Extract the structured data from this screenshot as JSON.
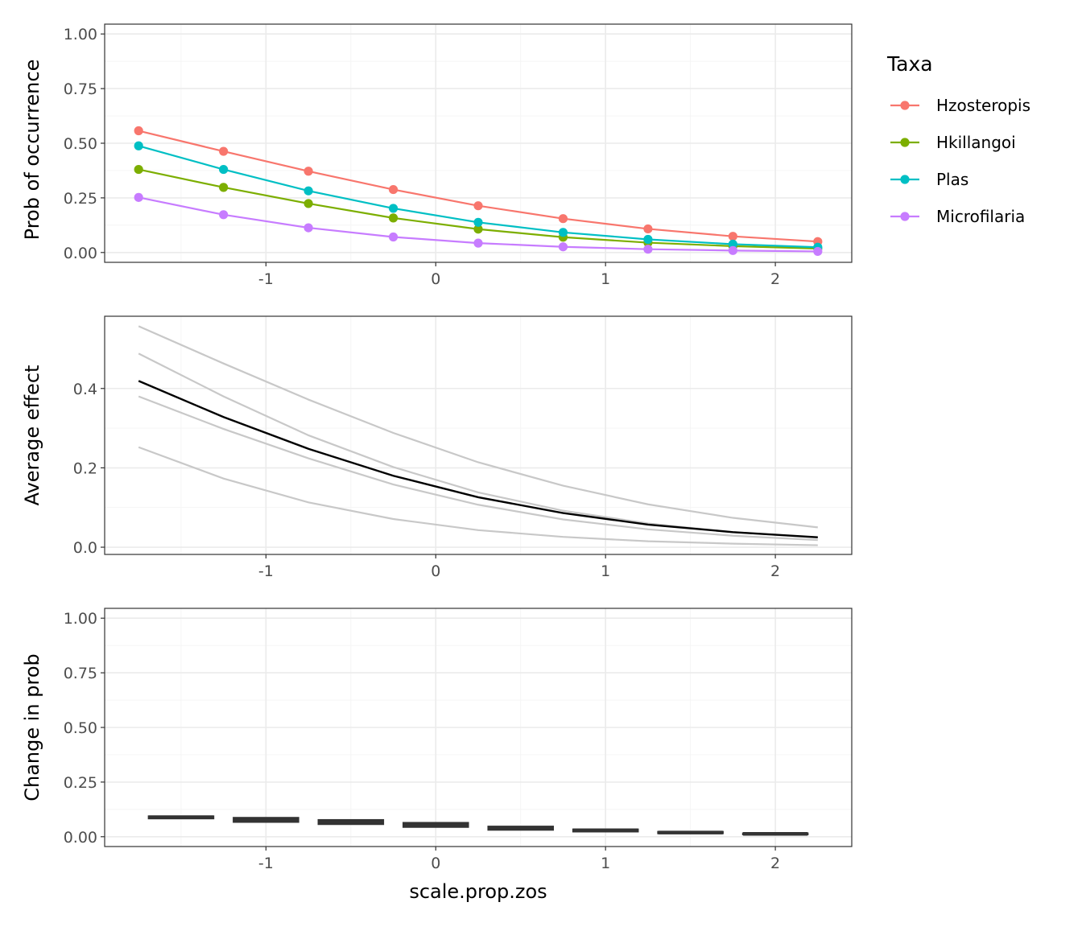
{
  "x_title": "scale.prop.zos",
  "legend": {
    "title": "Taxa",
    "items": [
      {
        "label": "Hzosteropis",
        "color": "#F8766D"
      },
      {
        "label": "Hkillangoi",
        "color": "#7CAE00"
      },
      {
        "label": "Plas",
        "color": "#00BFC4"
      },
      {
        "label": "Microfilaria",
        "color": "#C77CFF"
      }
    ]
  },
  "colors": {
    "average_line": "#000000",
    "taxa_gray_lines": "#c8c8c8",
    "crossbar": "#333333"
  },
  "chart_data": [
    {
      "type": "line",
      "ylabel": "Prob of occurrence",
      "xlabel": "",
      "xlim": [
        -1.95,
        2.45
      ],
      "ylim": [
        -0.045,
        1.045
      ],
      "x_ticks": [
        "-1",
        "0",
        "1",
        "2"
      ],
      "x_tick_values": [
        -1,
        0,
        1,
        2
      ],
      "y_ticks": [
        "0.00",
        "0.25",
        "0.50",
        "0.75",
        "1.00"
      ],
      "y_tick_values": [
        0,
        0.25,
        0.5,
        0.75,
        1
      ],
      "grid": true,
      "legend_position": "right",
      "x": [
        -1.75,
        -1.25,
        -0.75,
        -0.25,
        0.25,
        0.75,
        1.25,
        1.75,
        2.25
      ],
      "series": [
        {
          "name": "Hzosteropis",
          "values": [
            0.557,
            0.463,
            0.372,
            0.288,
            0.214,
            0.155,
            0.108,
            0.074,
            0.05
          ]
        },
        {
          "name": "Hkillangoi",
          "values": [
            0.38,
            0.298,
            0.224,
            0.158,
            0.107,
            0.07,
            0.045,
            0.029,
            0.018
          ]
        },
        {
          "name": "Plas",
          "values": [
            0.488,
            0.38,
            0.282,
            0.202,
            0.138,
            0.092,
            0.06,
            0.038,
            0.024
          ]
        },
        {
          "name": "Microfilaria",
          "values": [
            0.252,
            0.173,
            0.113,
            0.071,
            0.043,
            0.026,
            0.015,
            0.009,
            0.005
          ]
        }
      ]
    },
    {
      "type": "line",
      "ylabel": "Average effect",
      "xlabel": "",
      "xlim": [
        -1.95,
        2.45
      ],
      "ylim": [
        -0.0182,
        0.582
      ],
      "x_ticks": [
        "-1",
        "0",
        "1",
        "2"
      ],
      "x_tick_values": [
        -1,
        0,
        1,
        2
      ],
      "y_ticks": [
        "0.0",
        "0.2",
        "0.4"
      ],
      "y_tick_values": [
        0,
        0.2,
        0.4
      ],
      "grid": true,
      "x": [
        -1.75,
        -1.25,
        -0.75,
        -0.25,
        0.25,
        0.75,
        1.25,
        1.75,
        2.25
      ],
      "average": [
        0.419,
        0.328,
        0.248,
        0.18,
        0.126,
        0.086,
        0.057,
        0.038,
        0.025
      ],
      "taxa_series": [
        [
          0.557,
          0.463,
          0.372,
          0.288,
          0.214,
          0.155,
          0.108,
          0.074,
          0.05
        ],
        [
          0.38,
          0.298,
          0.224,
          0.158,
          0.107,
          0.07,
          0.045,
          0.029,
          0.018
        ],
        [
          0.488,
          0.38,
          0.282,
          0.202,
          0.138,
          0.092,
          0.06,
          0.038,
          0.024
        ],
        [
          0.252,
          0.173,
          0.113,
          0.071,
          0.043,
          0.026,
          0.015,
          0.009,
          0.005
        ]
      ]
    },
    {
      "type": "bar",
      "ylabel": "Change in prob",
      "xlabel": "scale.prop.zos",
      "xlim": [
        -1.95,
        2.45
      ],
      "ylim": [
        -0.045,
        1.045
      ],
      "x_ticks": [
        "-1",
        "0",
        "1",
        "2"
      ],
      "x_tick_values": [
        -1,
        0,
        1,
        2
      ],
      "y_ticks": [
        "0.00",
        "0.25",
        "0.50",
        "0.75",
        "1.00"
      ],
      "y_tick_values": [
        0,
        0.25,
        0.5,
        0.75,
        1
      ],
      "grid": true,
      "x": [
        -1.5,
        -1.0,
        -0.5,
        0.0,
        0.5,
        1.0,
        1.5,
        2.0
      ],
      "crossbar_width": 0.38,
      "values": [
        0.089,
        0.079,
        0.068,
        0.054,
        0.04,
        0.029,
        0.019,
        0.013
      ],
      "lower": [
        0.084,
        0.068,
        0.058,
        0.045,
        0.032,
        0.024,
        0.016,
        0.011
      ],
      "upper": [
        0.093,
        0.086,
        0.076,
        0.063,
        0.046,
        0.033,
        0.022,
        0.015
      ]
    }
  ]
}
